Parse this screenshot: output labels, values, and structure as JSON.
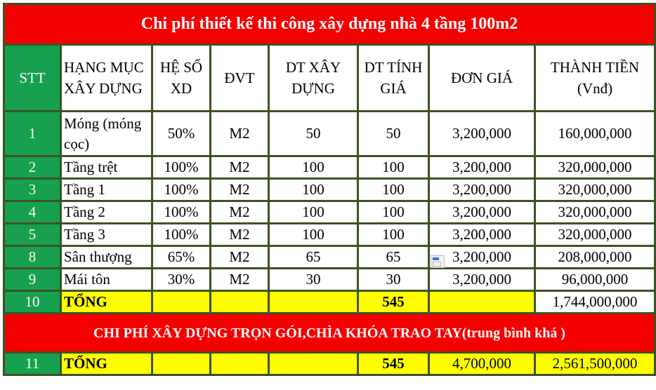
{
  "title": "Chi phí thiết kế thi công xây dựng nhà 4 tầng 100m2",
  "headers": [
    "STT",
    "HẠNG MỤC XÂY DỰNG",
    "HỆ SỐ XD",
    "ĐVT",
    "DT XÂY DỰNG",
    "DT TÍNH GIÁ",
    "ĐƠN GIÁ",
    "THÀNH TIỀN (Vnđ)"
  ],
  "rows": [
    {
      "stt": "1",
      "item": "Móng (móng cọc)",
      "coef": "50%",
      "unit": "M2",
      "area": "50",
      "calc_area": "50",
      "unit_price": "3,200,000",
      "amount": "160,000,000"
    },
    {
      "stt": "2",
      "item": "Tầng trệt",
      "coef": "100%",
      "unit": "M2",
      "area": "100",
      "calc_area": "100",
      "unit_price": "3,200,000",
      "amount": "320,000,000"
    },
    {
      "stt": "3",
      "item": "Tầng 1",
      "coef": "100%",
      "unit": "M2",
      "area": "100",
      "calc_area": "100",
      "unit_price": "3,200,000",
      "amount": "320,000,000"
    },
    {
      "stt": "4",
      "item": "Tầng 2",
      "coef": "100%",
      "unit": "M2",
      "area": "100",
      "calc_area": "100",
      "unit_price": "3,200,000",
      "amount": "320,000,000"
    },
    {
      "stt": "5",
      "item": "Tầng 3",
      "coef": "100%",
      "unit": "M2",
      "area": "100",
      "calc_area": "100",
      "unit_price": "3,200,000",
      "amount": "320,000,000"
    },
    {
      "stt": "8",
      "item": "Sân thượng",
      "coef": "65%",
      "unit": "M2",
      "area": "65",
      "calc_area": "65",
      "unit_price": "3,200,000",
      "amount": "208,000,000"
    },
    {
      "stt": "9",
      "item": "Mái tôn",
      "coef": "30%",
      "unit": "M2",
      "area": "30",
      "calc_area": "30",
      "unit_price": "3,200,000",
      "amount": "96,000,000"
    }
  ],
  "total1": {
    "stt": "10",
    "label": "TỔNG",
    "calc_area": "545",
    "amount": "1,744,000,000"
  },
  "band": "CHI PHÍ XÂY DỰNG TRỌN GÓI,CHÌA KHÓA TRAO TAY(trung bình khá )",
  "total2": {
    "stt": "11",
    "label": "TỔNG",
    "calc_area": "545",
    "unit_price": "4,700,000",
    "amount": "2,561,500,000"
  },
  "colors": {
    "title_bg": "#f40000",
    "stt_bg": "#16a04f",
    "total_bg": "#ffff00",
    "border": "#3b5323"
  }
}
